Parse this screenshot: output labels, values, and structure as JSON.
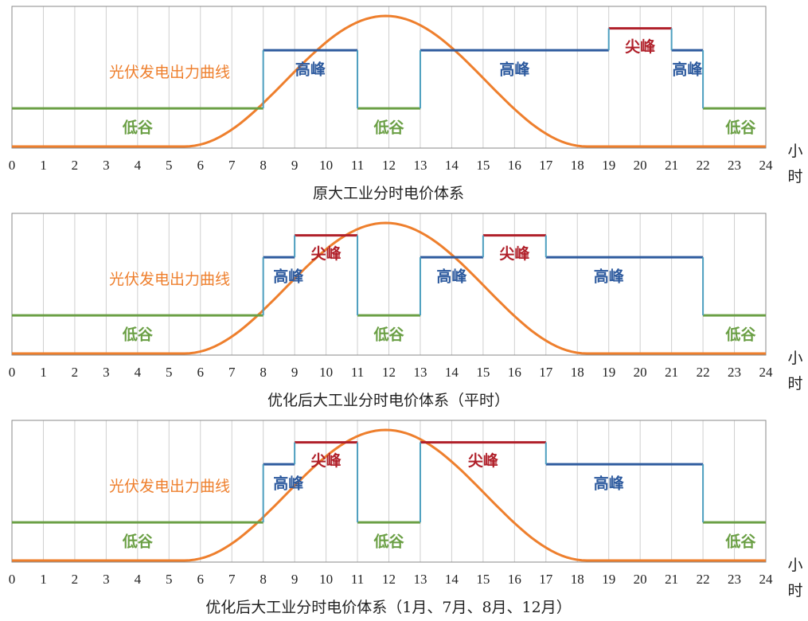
{
  "colors": {
    "valley": "#6a9f44",
    "high": "#2d5a9e",
    "peak": "#b0202a",
    "pv": "#ee7f2d",
    "riser": "#4d9fbf",
    "grid": "#cfcfcf"
  },
  "unit_label": [
    "小",
    "时"
  ],
  "pv_label": "光伏发电出力曲线",
  "labels": {
    "valley": "低谷",
    "high": "高峰",
    "peak": "尖峰"
  },
  "chart_data": [
    {
      "type": "line",
      "title": "原大工业分时电价体系",
      "x_ticks": [
        "0",
        "1",
        "2",
        "3",
        "4",
        "5",
        "6",
        "7",
        "8",
        "9",
        "10",
        "11",
        "12",
        "13",
        "14",
        "15",
        "16",
        "17",
        "18",
        "19",
        "20",
        "21",
        "22",
        "23",
        "24"
      ],
      "xlim": [
        0,
        24
      ],
      "grid": true,
      "segments": [
        {
          "start": 0,
          "end": 8,
          "level": "valley"
        },
        {
          "start": 8,
          "end": 11,
          "level": "high"
        },
        {
          "start": 11,
          "end": 13,
          "level": "valley"
        },
        {
          "start": 13,
          "end": 19,
          "level": "high"
        },
        {
          "start": 19,
          "end": 21,
          "level": "peak"
        },
        {
          "start": 21,
          "end": 22,
          "level": "high"
        },
        {
          "start": 22,
          "end": 24,
          "level": "valley"
        }
      ],
      "segment_labels": [
        {
          "text_key": "valley",
          "x": 4
        },
        {
          "text_key": "high",
          "x": 9.5
        },
        {
          "text_key": "valley",
          "x": 12
        },
        {
          "text_key": "high",
          "x": 16
        },
        {
          "text_key": "peak",
          "x": 20
        },
        {
          "text_key": "high",
          "x": 21.5
        },
        {
          "text_key": "valley",
          "x": 23.2
        }
      ],
      "pv_curve": {
        "start": 5.5,
        "peak": 11.9,
        "end": 18.3
      }
    },
    {
      "type": "line",
      "title": "优化后大工业分时电价体系（平时）",
      "x_ticks": [
        "0",
        "1",
        "2",
        "3",
        "4",
        "5",
        "6",
        "7",
        "8",
        "9",
        "10",
        "11",
        "12",
        "13",
        "14",
        "15",
        "16",
        "17",
        "18",
        "19",
        "20",
        "21",
        "22",
        "23",
        "24"
      ],
      "xlim": [
        0,
        24
      ],
      "grid": true,
      "segments": [
        {
          "start": 0,
          "end": 8,
          "level": "valley"
        },
        {
          "start": 8,
          "end": 9,
          "level": "high"
        },
        {
          "start": 9,
          "end": 11,
          "level": "peak"
        },
        {
          "start": 11,
          "end": 13,
          "level": "valley"
        },
        {
          "start": 13,
          "end": 15,
          "level": "high"
        },
        {
          "start": 15,
          "end": 17,
          "level": "peak"
        },
        {
          "start": 17,
          "end": 22,
          "level": "high"
        },
        {
          "start": 22,
          "end": 24,
          "level": "valley"
        }
      ],
      "segment_labels": [
        {
          "text_key": "valley",
          "x": 4
        },
        {
          "text_key": "high",
          "x": 8.8
        },
        {
          "text_key": "peak",
          "x": 10
        },
        {
          "text_key": "valley",
          "x": 12
        },
        {
          "text_key": "high",
          "x": 14
        },
        {
          "text_key": "peak",
          "x": 16
        },
        {
          "text_key": "high",
          "x": 19
        },
        {
          "text_key": "valley",
          "x": 23.2
        }
      ],
      "pv_curve": {
        "start": 5.5,
        "peak": 11.9,
        "end": 18.3
      }
    },
    {
      "type": "line",
      "title": "优化后大工业分时电价体系（1月、7月、8月、12月）",
      "x_ticks": [
        "0",
        "1",
        "2",
        "3",
        "4",
        "5",
        "6",
        "7",
        "8",
        "9",
        "10",
        "11",
        "12",
        "13",
        "14",
        "15",
        "16",
        "17",
        "18",
        "19",
        "20",
        "21",
        "22",
        "23",
        "24"
      ],
      "xlim": [
        0,
        24
      ],
      "grid": true,
      "segments": [
        {
          "start": 0,
          "end": 8,
          "level": "valley"
        },
        {
          "start": 8,
          "end": 9,
          "level": "high"
        },
        {
          "start": 9,
          "end": 11,
          "level": "peak"
        },
        {
          "start": 11,
          "end": 13,
          "level": "valley"
        },
        {
          "start": 13,
          "end": 17,
          "level": "peak"
        },
        {
          "start": 17,
          "end": 22,
          "level": "high"
        },
        {
          "start": 22,
          "end": 24,
          "level": "valley"
        }
      ],
      "segment_labels": [
        {
          "text_key": "valley",
          "x": 4
        },
        {
          "text_key": "high",
          "x": 8.8
        },
        {
          "text_key": "peak",
          "x": 10
        },
        {
          "text_key": "valley",
          "x": 12
        },
        {
          "text_key": "peak",
          "x": 15
        },
        {
          "text_key": "high",
          "x": 19
        },
        {
          "text_key": "valley",
          "x": 23.2
        }
      ],
      "pv_curve": {
        "start": 5.5,
        "peak": 11.9,
        "end": 18.3
      }
    }
  ]
}
